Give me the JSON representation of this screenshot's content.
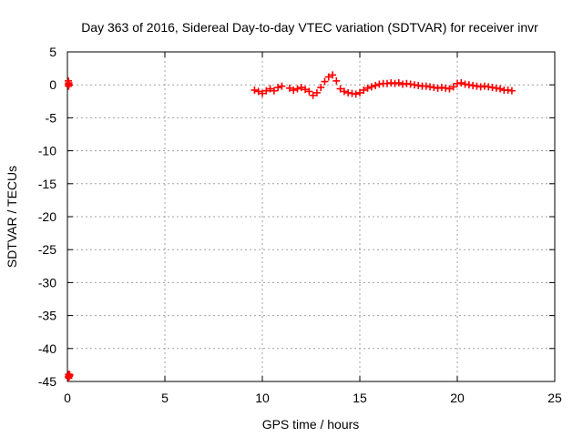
{
  "chart_data": {
    "type": "scatter",
    "title": "Day 363 of 2016, Sidereal Day-to-day VTEC variation (SDTVAR) for receiver invr",
    "xlabel": "GPS time / hours",
    "ylabel": "SDTVAR / TECUs",
    "xlim": [
      0,
      25
    ],
    "ylim": [
      -45,
      5
    ],
    "xticks": [
      0,
      5,
      10,
      15,
      20,
      25
    ],
    "yticks": [
      5,
      0,
      -5,
      -10,
      -15,
      -20,
      -25,
      -30,
      -35,
      -40,
      -45
    ],
    "xtick_labels": [
      "0",
      "5",
      "10",
      "15",
      "20",
      "25"
    ],
    "ytick_labels": [
      "5",
      "0",
      "-5",
      "-10",
      "-15",
      "-20",
      "-25",
      "-30",
      "-35",
      "-40",
      "-45"
    ],
    "grid": true,
    "marker": "plus",
    "color": "#ff0000",
    "series": [
      {
        "x": [
          0.05,
          0.05,
          0.06,
          0.07,
          0.08,
          0.05,
          0.06,
          0.07,
          0.08,
          0.1,
          0.12,
          9.6,
          9.8,
          10.0,
          10.2,
          10.4,
          10.6,
          10.8,
          11.0,
          11.4,
          11.6,
          11.8,
          12.0,
          12.2,
          12.4,
          12.6,
          12.8,
          13.0,
          13.2,
          13.4,
          13.6,
          13.8,
          14.0,
          14.2,
          14.4,
          14.6,
          14.8,
          15.0,
          15.2,
          15.4,
          15.6,
          15.8,
          16.0,
          16.2,
          16.4,
          16.6,
          16.8,
          17.0,
          17.2,
          17.4,
          17.6,
          17.8,
          18.0,
          18.2,
          18.4,
          18.6,
          18.8,
          19.0,
          19.2,
          19.4,
          19.6,
          19.8,
          20.0,
          20.2,
          20.4,
          20.6,
          20.8,
          21.0,
          21.2,
          21.4,
          21.6,
          21.8,
          22.0,
          22.2,
          22.4,
          22.6,
          22.8
        ],
        "y": [
          0.6,
          0.1,
          -0.2,
          0.3,
          0.0,
          -44.3,
          -44.0,
          -44.5,
          -43.9,
          -44.2,
          -44.0,
          -0.8,
          -1.0,
          -1.3,
          -0.9,
          -0.6,
          -0.9,
          -0.4,
          -0.2,
          -0.5,
          -0.8,
          -0.6,
          -0.4,
          -0.7,
          -1.0,
          -1.6,
          -1.2,
          -0.4,
          0.5,
          1.2,
          1.5,
          0.6,
          -0.6,
          -1.0,
          -1.2,
          -1.3,
          -1.4,
          -1.2,
          -0.8,
          -0.5,
          -0.3,
          -0.1,
          0.1,
          0.2,
          0.2,
          0.3,
          0.2,
          0.3,
          0.1,
          0.2,
          0.1,
          0.0,
          -0.1,
          -0.2,
          -0.2,
          -0.3,
          -0.4,
          -0.5,
          -0.4,
          -0.5,
          -0.6,
          -0.3,
          0.2,
          0.3,
          0.1,
          0.0,
          -0.1,
          -0.2,
          -0.3,
          -0.2,
          -0.3,
          -0.4,
          -0.5,
          -0.6,
          -0.8,
          -0.8,
          -0.9
        ]
      }
    ]
  }
}
